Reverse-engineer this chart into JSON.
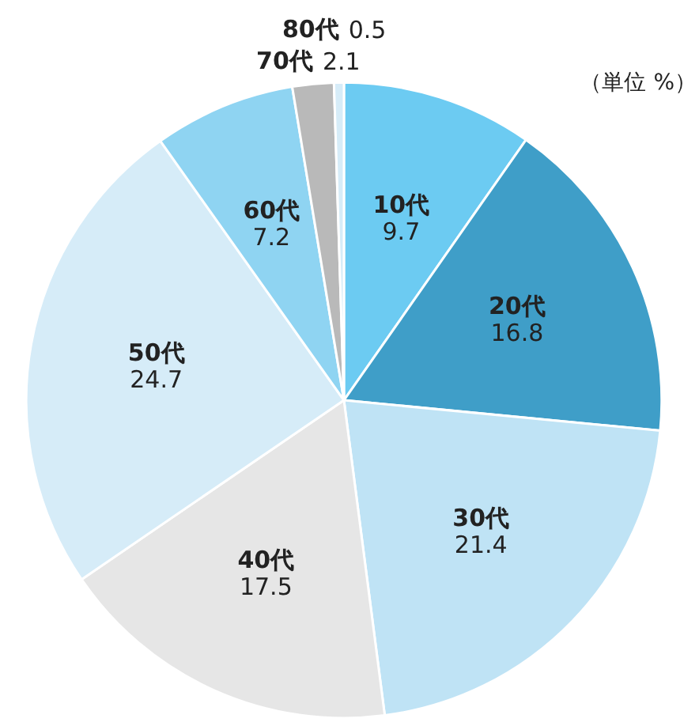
{
  "chart_data": {
    "type": "pie",
    "categories": [
      "10代",
      "20代",
      "30代",
      "40代",
      "50代",
      "60代",
      "70代",
      "80代"
    ],
    "values": [
      9.7,
      16.8,
      21.4,
      17.5,
      24.7,
      7.2,
      2.1,
      0.5
    ],
    "colors": [
      "#6ccbf2",
      "#3f9ec8",
      "#bfe3f5",
      "#e6e6e6",
      "#d6ecf8",
      "#8fd4f2",
      "#b9b9b9",
      "#d6ecf8"
    ],
    "data_labels": true,
    "annotations": [
      "（単位 %）"
    ]
  }
}
